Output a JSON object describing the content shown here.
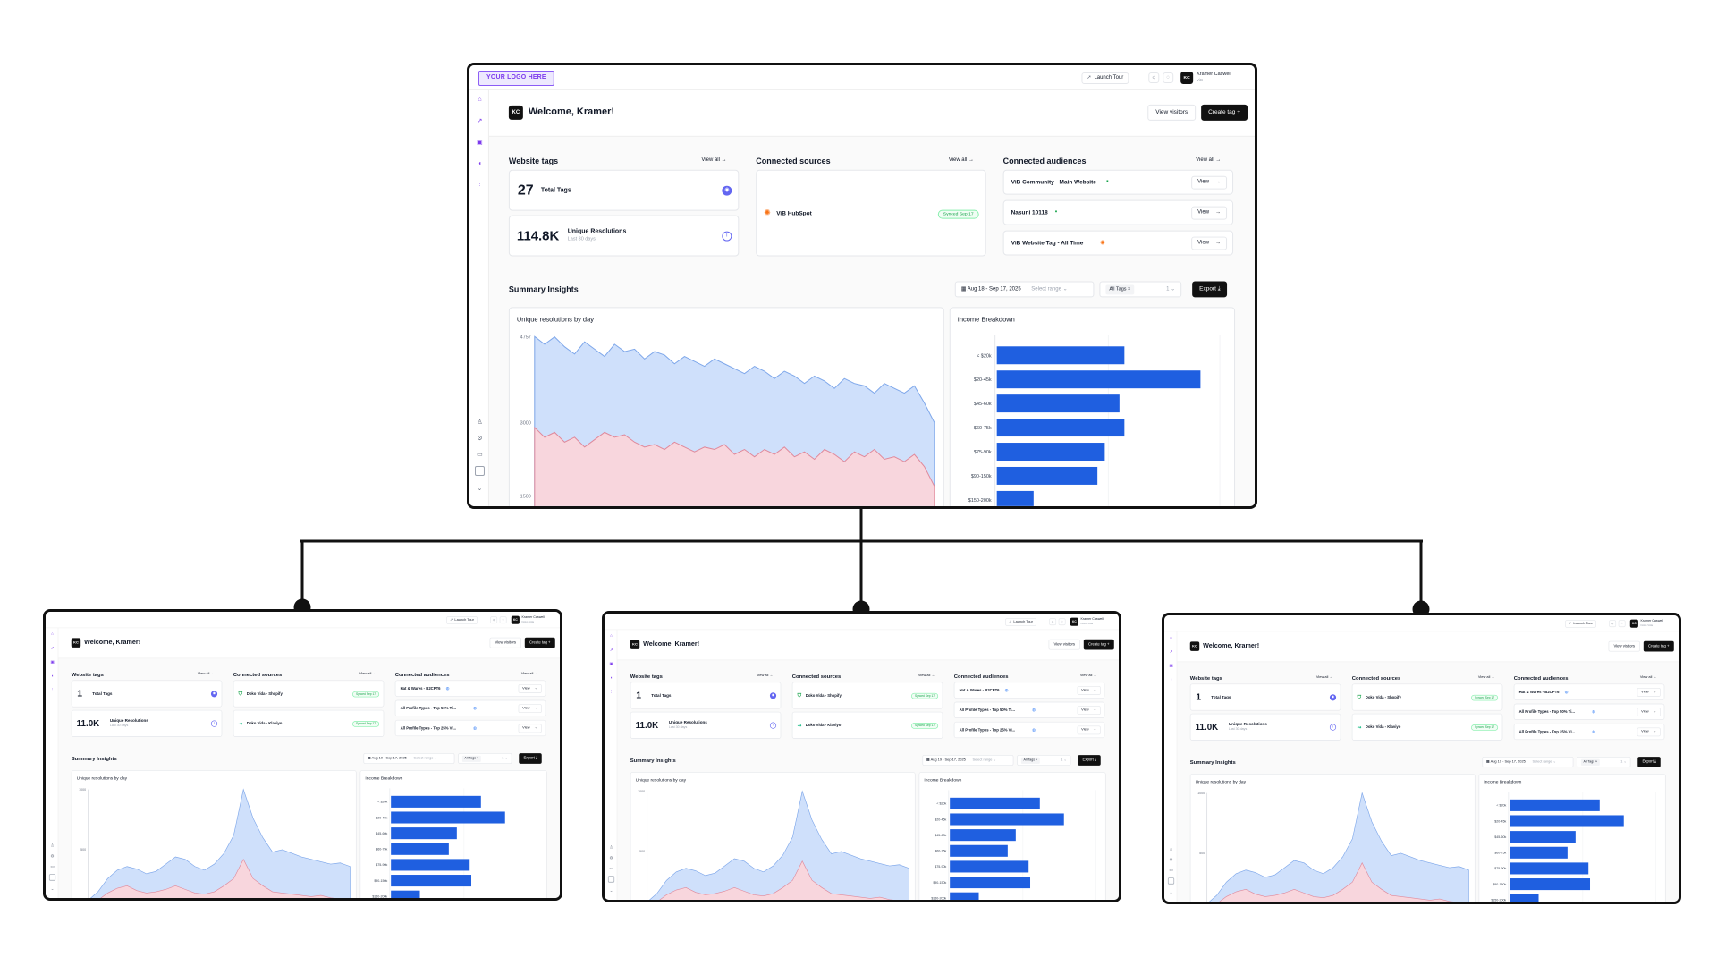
{
  "colors": {
    "accent": "#7c3aed",
    "bar": "#1f5fe0",
    "area_blue": "#cfe0fb",
    "area_blue_line": "#7ea7ea",
    "area_pink": "#f8d6dd",
    "area_pink_line": "#e0899b",
    "dark_button": "#111111"
  },
  "templates": [
    {
      "topbar": {
        "logo": "YOUR LOGO HERE",
        "launch_tour": "Launch Tour",
        "avatar": "KC",
        "user_name": "Kramer Caswell",
        "user_org": "ViB"
      },
      "header": {
        "avatar": "KC",
        "welcome": "Welcome, Kramer!",
        "view_visitors": "View visitors",
        "create_tag": "Create tag"
      },
      "website_tags": {
        "title": "Website tags",
        "view_all": "View all",
        "total_value": "27",
        "total_label": "Total Tags",
        "res_value": "114.8K",
        "res_label": "Unique Resolutions",
        "res_sub": "Last 30 days"
      },
      "connected_sources": {
        "title": "Connected sources",
        "view_all": "View all",
        "items": [
          {
            "name": "ViB HubSpot",
            "status": "Synced Sep 17"
          }
        ]
      },
      "connected_audiences": {
        "title": "Connected audiences",
        "view_all": "View all",
        "items": [
          {
            "name": "ViB Community - Main Website",
            "icon": "green",
            "view": "View"
          },
          {
            "name": "Nasuni 10118",
            "icon": "green",
            "view": "View"
          },
          {
            "name": "ViB Website Tag - All Time",
            "icon": "orange",
            "view": "View"
          }
        ]
      },
      "summary": {
        "title": "Summary Insights",
        "date_range": "Aug 18 - Sep 17, 2025",
        "select_range": "Select range",
        "tags_chip": "All Tags",
        "tags_count": "1",
        "export": "Export"
      },
      "chart_data": [
        {
          "type": "area",
          "title": "Unique resolutions by day",
          "ytick_labels": [
            "4757",
            "3000",
            "1500"
          ],
          "series": [
            {
              "values": [
                4757,
                4600,
                4750,
                4550,
                4400,
                4650,
                4500,
                4350,
                4600,
                4450,
                4500,
                4300,
                4450,
                4380,
                4200,
                4350,
                4250,
                4150,
                4300,
                4200,
                4100,
                4000,
                4150,
                4050,
                3900,
                4050,
                3950,
                3800,
                3950,
                3850,
                3700,
                3900,
                3800,
                3750,
                3600,
                3800,
                3700,
                3600,
                3750,
                3400,
                3000
              ]
            },
            {
              "values": [
                2900,
                2700,
                2800,
                2600,
                2700,
                2500,
                2650,
                2800,
                2700,
                2750,
                2600,
                2500,
                2550,
                2450,
                2600,
                2500,
                2400,
                2500,
                2450,
                2550,
                2350,
                2450,
                2300,
                2450,
                2350,
                2500,
                2300,
                2400,
                2250,
                2450,
                2350,
                2200,
                2400,
                2300,
                2450,
                2250,
                2300,
                2200,
                2350,
                2100,
                1700
              ]
            }
          ]
        },
        {
          "type": "bar",
          "title": "Income Breakdown",
          "categories": [
            "< $20k",
            "$20-45k",
            "$45-60k",
            "$60-75k",
            "$75-90k",
            "$90-150k",
            "$150-200k"
          ],
          "values": [
            52,
            83,
            50,
            52,
            44,
            41,
            15
          ]
        }
      ]
    },
    {
      "topbar": {
        "logo": "",
        "launch_tour": "Launch Tour",
        "avatar": "KC",
        "user_name": "Kramer Caswell",
        "user_org": "Doko Vida"
      },
      "header": {
        "avatar": "KC",
        "welcome": "Welcome, Kramer!",
        "view_visitors": "View visitors",
        "create_tag": "Create tag"
      },
      "website_tags": {
        "title": "Website tags",
        "view_all": "View all",
        "total_value": "1",
        "total_label": "Total Tags",
        "res_value": "11.0K",
        "res_label": "Unique Resolutions",
        "res_sub": "Last 30 days"
      },
      "connected_sources": {
        "title": "Connected sources",
        "view_all": "View all",
        "items": [
          {
            "name": "Doko Vida - Shopify",
            "status": "Synced Sep 17"
          },
          {
            "name": "Doko Vida - Klaviyo",
            "status": "Synced Sep 17"
          }
        ]
      },
      "connected_audiences": {
        "title": "Connected audiences",
        "view_all": "View all",
        "items": [
          {
            "name": "Hat & Wares - B2CPT6",
            "icon": "blue",
            "view": "View"
          },
          {
            "name": "All Profile Types - Top 50% Ti...",
            "icon": "blue",
            "view": "View"
          },
          {
            "name": "All Profile Types - Top 25% Vi...",
            "icon": "blue",
            "view": "View"
          }
        ]
      },
      "summary": {
        "title": "Summary Insights",
        "date_range": "Aug 19 - Sep 17, 2025",
        "select_range": "Select range",
        "tags_chip": "All Tags",
        "tags_count": "1",
        "export": "Export"
      },
      "chart_data": [
        {
          "type": "area",
          "title": "Unique resolutions by day",
          "ytick_labels": [
            "1000",
            "500"
          ],
          "series": [
            {
              "values": [
                80,
                150,
                260,
                330,
                360,
                340,
                300,
                320,
                380,
                440,
                420,
                360,
                330,
                380,
                470,
                620,
                1000,
                760,
                600,
                480,
                500,
                470,
                440,
                420,
                400,
                380,
                390,
                360
              ]
            },
            {
              "values": [
                40,
                80,
                140,
                180,
                200,
                160,
                140,
                150,
                170,
                200,
                170,
                140,
                130,
                150,
                200,
                260,
                420,
                260,
                200,
                150,
                140,
                130,
                120,
                110,
                120,
                100,
                90,
                80
              ]
            }
          ]
        },
        {
          "type": "bar",
          "title": "Income Breakdown",
          "categories": [
            "< $20k",
            "$20-45k",
            "$45-60k",
            "$60-75k",
            "$75-90k",
            "$90-150k",
            "$150-200k"
          ],
          "values": [
            56,
            71,
            41,
            36,
            49,
            50,
            18
          ]
        }
      ]
    }
  ]
}
